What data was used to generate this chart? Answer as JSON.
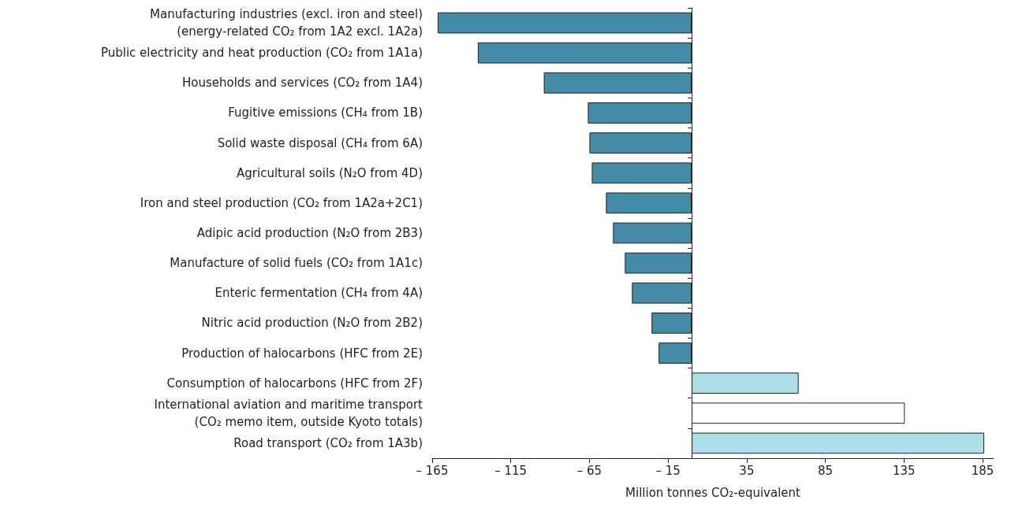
{
  "chart_data": {
    "type": "bar",
    "orientation": "horizontal",
    "xlabel": "Million tonnes CO₂-equivalent",
    "categories": [
      "Manufacturing industries (excl. iron and steel)\n(energy-related CO₂ from 1A2 excl. 1A2a)",
      "Public electricity and heat production (CO₂ from 1A1a)",
      "Households and services (CO₂ from 1A4)",
      "Fugitive emissions (CH₄ from 1B)",
      "Solid waste disposal (CH₄ from 6A)",
      "Agricultural soils (N₂O from 4D)",
      "Iron and steel production (CO₂ from 1A2a+2C1)",
      "Adipic acid production (N₂O from 2B3)",
      "Manufacture of solid fuels (CO₂ from 1A1c)",
      "Enteric fermentation (CH₄ from 4A)",
      "Nitric acid production (N₂O from 2B2)",
      "Production of halocarbons (HFC from 2E)",
      "Consumption of halocarbons (HFC from 2F)",
      "International aviation and maritime transport\n(CO₂ memo item, outside Kyoto totals)",
      "Road transport (CO₂ from 1A3b)"
    ],
    "values": [
      -161.5,
      -136,
      -94,
      -66,
      -65,
      -63.5,
      -54.5,
      -50,
      -42.5,
      -38,
      -25.5,
      -21,
      68,
      135.5,
      186
    ],
    "colors": [
      "#438ba6",
      "#438ba6",
      "#438ba6",
      "#438ba6",
      "#438ba6",
      "#438ba6",
      "#438ba6",
      "#438ba6",
      "#438ba6",
      "#438ba6",
      "#438ba6",
      "#438ba6",
      "#aedfe8",
      "#ffffff",
      "#aedfe8"
    ],
    "xlim": [
      -165,
      192
    ],
    "xticks": [
      {
        "value": -165,
        "label": "– 165"
      },
      {
        "value": -115,
        "label": "– 115"
      },
      {
        "value": -65,
        "label": "– 65"
      },
      {
        "value": -15,
        "label": "– 15"
      },
      35,
      85,
      135,
      185
    ]
  }
}
